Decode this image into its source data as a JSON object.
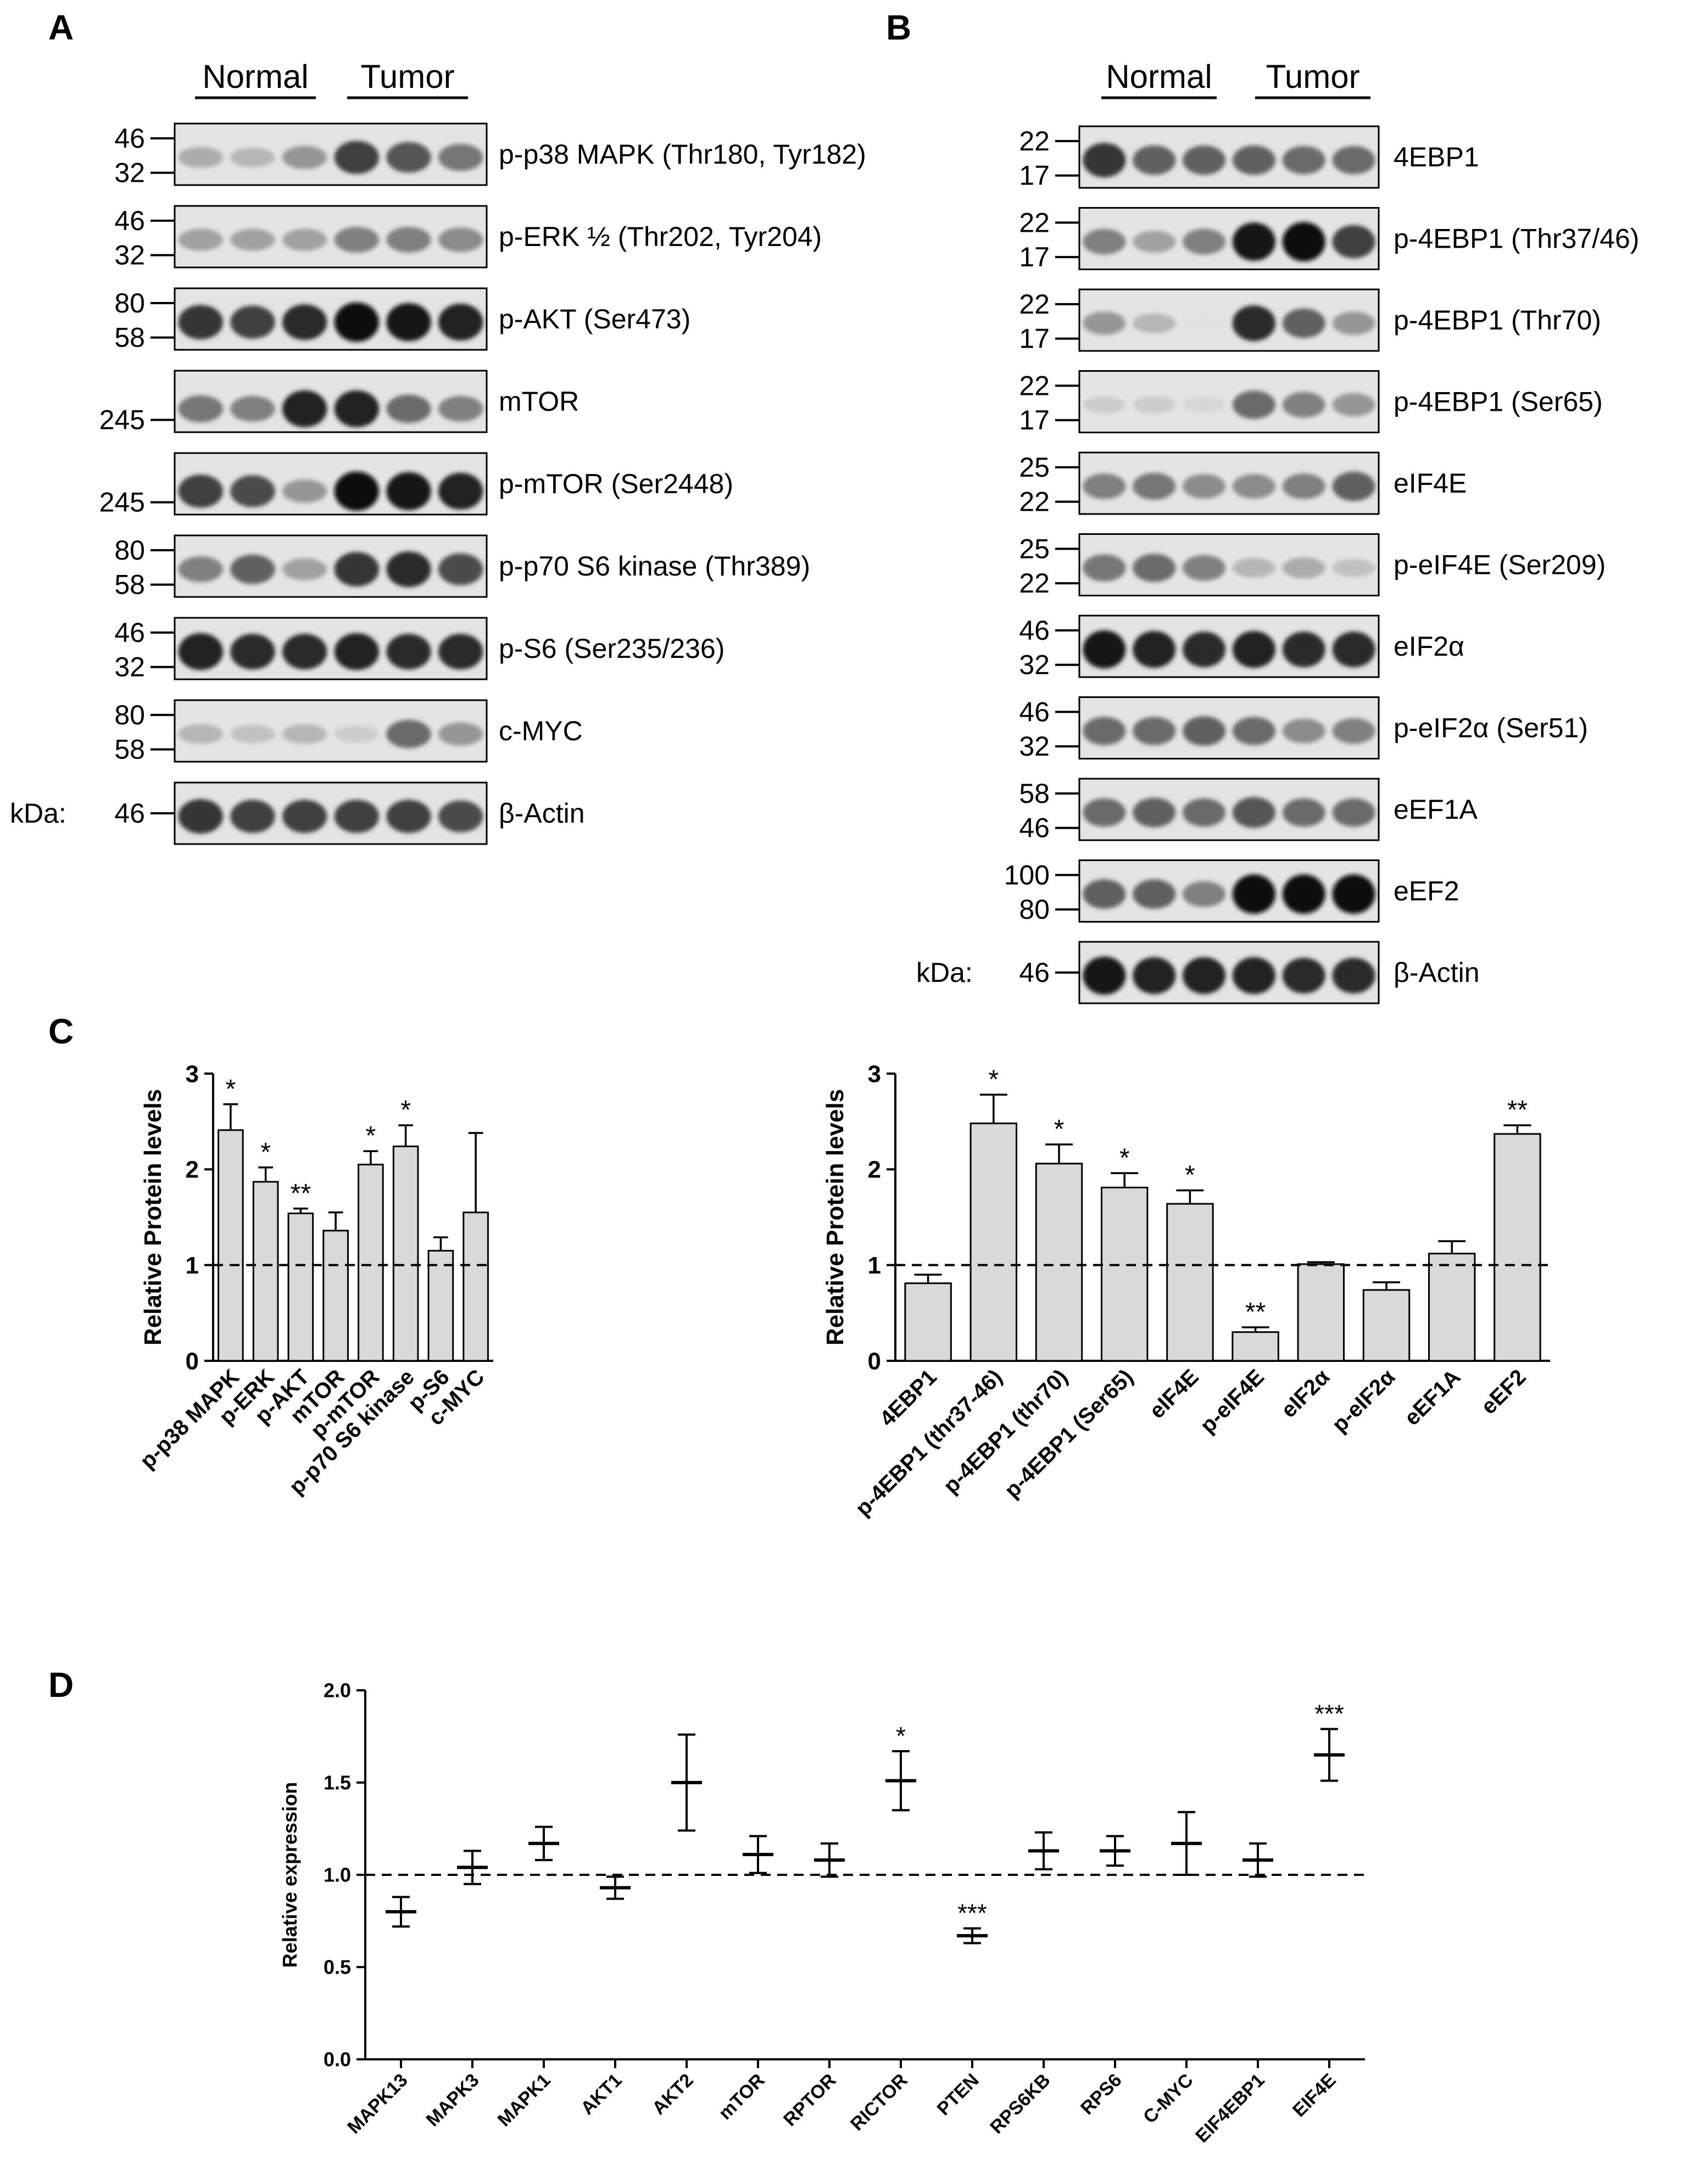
{
  "panels": {
    "A": "A",
    "B": "B",
    "C": "C",
    "D": "D"
  },
  "blot_a": {
    "normal_label": "Normal",
    "tumor_label": "Tumor",
    "kda_label": "kDa:",
    "rows": [
      {
        "label": "p-p38 MAPK (Thr180, Tyr182)",
        "markers": [
          "46",
          "32"
        ],
        "intensities": [
          0.25,
          0.2,
          0.35,
          0.75,
          0.65,
          0.5
        ]
      },
      {
        "label": "p-ERK ½ (Thr202, Tyr204)",
        "markers": [
          "46",
          "32"
        ],
        "intensities": [
          0.3,
          0.3,
          0.3,
          0.45,
          0.45,
          0.4
        ]
      },
      {
        "label": "p-AKT (Ser473)",
        "markers": [
          "80",
          "58"
        ],
        "intensities": [
          0.8,
          0.75,
          0.85,
          1.0,
          0.95,
          0.9
        ]
      },
      {
        "label": "mTOR",
        "markers": [
          "",
          "245"
        ],
        "intensities": [
          0.5,
          0.45,
          0.9,
          0.9,
          0.55,
          0.45
        ]
      },
      {
        "label": "p-mTOR (Ser2448)",
        "markers": [
          "",
          "245"
        ],
        "intensities": [
          0.75,
          0.7,
          0.35,
          1.0,
          0.95,
          0.9
        ]
      },
      {
        "label": "p-p70 S6 kinase (Thr389)",
        "markers": [
          "80",
          "58"
        ],
        "intensities": [
          0.45,
          0.6,
          0.3,
          0.8,
          0.85,
          0.7
        ]
      },
      {
        "label": "p-S6 (Ser235/236)",
        "markers": [
          "46",
          "32"
        ],
        "intensities": [
          0.9,
          0.85,
          0.85,
          0.9,
          0.85,
          0.85
        ]
      },
      {
        "label": "c-MYC",
        "markers": [
          "80",
          "58"
        ],
        "intensities": [
          0.2,
          0.15,
          0.2,
          0.1,
          0.55,
          0.35
        ]
      },
      {
        "label": "β-Actin",
        "markers": [
          "46"
        ],
        "intensities": [
          0.8,
          0.75,
          0.75,
          0.75,
          0.75,
          0.7
        ]
      }
    ]
  },
  "blot_b": {
    "normal_label": "Normal",
    "tumor_label": "Tumor",
    "kda_label": "kDa:",
    "rows": [
      {
        "label": "4EBP1",
        "markers": [
          "22",
          "17"
        ],
        "intensities": [
          0.8,
          0.6,
          0.6,
          0.6,
          0.55,
          0.55
        ]
      },
      {
        "label": "p-4EBP1 (Thr37/46)",
        "markers": [
          "22",
          "17"
        ],
        "intensities": [
          0.45,
          0.3,
          0.45,
          0.95,
          1.0,
          0.75
        ]
      },
      {
        "label": "p-4EBP1 (Thr70)",
        "markers": [
          "22",
          "17"
        ],
        "intensities": [
          0.35,
          0.2,
          0.0,
          0.85,
          0.6,
          0.35
        ]
      },
      {
        "label": "p-4EBP1 (Ser65)",
        "markers": [
          "22",
          "17"
        ],
        "intensities": [
          0.1,
          0.1,
          0.05,
          0.55,
          0.45,
          0.35
        ]
      },
      {
        "label": "eIF4E",
        "markers": [
          "25",
          "22"
        ],
        "intensities": [
          0.45,
          0.5,
          0.4,
          0.4,
          0.45,
          0.6
        ]
      },
      {
        "label": "p-eIF4E (Ser209)",
        "markers": [
          "25",
          "22"
        ],
        "intensities": [
          0.5,
          0.55,
          0.45,
          0.2,
          0.25,
          0.15
        ]
      },
      {
        "label": "eIF2α",
        "markers": [
          "46",
          "32"
        ],
        "intensities": [
          0.95,
          0.9,
          0.85,
          0.9,
          0.85,
          0.85
        ]
      },
      {
        "label": "p-eIF2α (Ser51)",
        "markers": [
          "46",
          "32"
        ],
        "intensities": [
          0.55,
          0.55,
          0.6,
          0.55,
          0.4,
          0.45
        ]
      },
      {
        "label": "eEF1A",
        "markers": [
          "58",
          "46"
        ],
        "intensities": [
          0.55,
          0.6,
          0.55,
          0.65,
          0.55,
          0.55
        ]
      },
      {
        "label": "eEF2",
        "markers": [
          "100",
          "80"
        ],
        "intensities": [
          0.6,
          0.6,
          0.45,
          1.0,
          1.0,
          1.0
        ]
      },
      {
        "label": "β-Actin",
        "markers": [
          "46"
        ],
        "intensities": [
          0.95,
          0.9,
          0.9,
          0.9,
          0.85,
          0.85
        ]
      }
    ]
  },
  "chart_data": [
    {
      "type": "bar",
      "panel": "C",
      "ylabel": "Relative Protein levels",
      "ylim": [
        0,
        3
      ],
      "yticks": [
        "0",
        "1",
        "2",
        "3"
      ],
      "reference_line": 1,
      "categories": [
        "p-p38 MAPK",
        "p-ERK",
        "p-AKT",
        "mTOR",
        "p-mTOR",
        "p-p70 S6 kinase",
        "p-S6",
        "c-MYC"
      ],
      "values": [
        2.41,
        1.87,
        1.54,
        1.36,
        2.05,
        2.24,
        1.15,
        1.55
      ],
      "errors": [
        0.27,
        0.15,
        0.05,
        0.19,
        0.14,
        0.22,
        0.14,
        0.83
      ],
      "significance": [
        "*",
        "*",
        "**",
        "",
        "*",
        "*",
        "",
        ""
      ]
    },
    {
      "type": "bar",
      "panel": "C",
      "ylabel": "Relative Protein levels",
      "ylim": [
        0,
        3
      ],
      "yticks": [
        "0",
        "1",
        "2",
        "3"
      ],
      "reference_line": 1,
      "categories": [
        "4EBP1",
        "p-4EBP1 (thr37-46)",
        "p-4EBP1 (thr70)",
        "p-4EBP1 (Ser65)",
        "eIF4E",
        "p-eIF4E",
        "eIF2α",
        "p-eIF2α",
        "eEF1A",
        "eEF2"
      ],
      "values": [
        0.81,
        2.48,
        2.06,
        1.81,
        1.64,
        0.3,
        1.01,
        0.74,
        1.12,
        2.37
      ],
      "errors": [
        0.09,
        0.3,
        0.2,
        0.15,
        0.14,
        0.05,
        0.02,
        0.08,
        0.13,
        0.09
      ],
      "significance": [
        "",
        "*",
        "*",
        "*",
        "*",
        "**",
        "",
        "",
        "",
        "**"
      ]
    },
    {
      "type": "scatter",
      "panel": "D",
      "ylabel": "Relative expression",
      "ylim": [
        0,
        2
      ],
      "yticks": [
        "0.0",
        "0.5",
        "1.0",
        "1.5",
        "2.0"
      ],
      "reference_line": 1,
      "categories": [
        "MAPK13",
        "MAPK3",
        "MAPK1",
        "AKT1",
        "AKT2",
        "mTOR",
        "RPTOR",
        "RICTOR",
        "PTEN",
        "RPS6KB",
        "RPS6",
        "C-MYC",
        "EIF4EBP1",
        "EIF4E"
      ],
      "values": [
        0.8,
        1.04,
        1.17,
        0.93,
        1.5,
        1.11,
        1.08,
        1.51,
        0.67,
        1.13,
        1.13,
        1.17,
        1.08,
        1.65
      ],
      "errors": [
        0.08,
        0.09,
        0.09,
        0.06,
        0.26,
        0.1,
        0.09,
        0.16,
        0.04,
        0.1,
        0.08,
        0.17,
        0.09,
        0.14
      ],
      "significance": [
        "",
        "",
        "",
        "",
        "",
        "",
        "",
        "*",
        "***",
        "",
        "",
        "",
        "",
        "***"
      ]
    }
  ]
}
